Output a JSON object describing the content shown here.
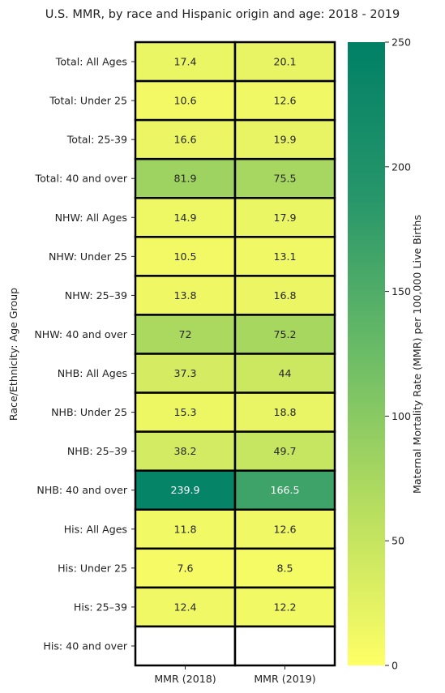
{
  "chart_data": {
    "type": "heatmap",
    "title": "U.S. MMR, by race and Hispanic origin and age: 2018 - 2019",
    "ylabel": "Race/Ethnicity: Age Group",
    "xlabel": "",
    "columns": [
      "MMR (2018)",
      "MMR (2019)"
    ],
    "rows": [
      "Total: All Ages",
      "Total: Under 25",
      "Total: 25-39",
      "Total: 40 and over",
      "NHW: All Ages",
      "NHW: Under 25",
      "NHW: 25–39",
      "NHW: 40 and over",
      "NHB: All Ages",
      "NHB: Under 25",
      "NHB: 25–39",
      "NHB: 40 and over",
      "His: All Ages",
      "His: Under 25",
      "His: 25–39",
      "His: 40 and over"
    ],
    "values": [
      [
        17.4,
        20.1
      ],
      [
        10.6,
        12.6
      ],
      [
        16.6,
        19.9
      ],
      [
        81.9,
        75.5
      ],
      [
        14.9,
        17.9
      ],
      [
        10.5,
        13.1
      ],
      [
        13.8,
        16.8
      ],
      [
        72,
        75.2
      ],
      [
        37.3,
        44
      ],
      [
        15.3,
        18.8
      ],
      [
        38.2,
        49.7
      ],
      [
        239.9,
        166.5
      ],
      [
        11.8,
        12.6
      ],
      [
        7.6,
        8.5
      ],
      [
        12.4,
        12.2
      ],
      [
        null,
        null
      ]
    ],
    "colorbar": {
      "label": "Maternal Mortality Rate (MMR) per 100,000 Live Births",
      "min": 0,
      "max": 250,
      "ticks": [
        0,
        50,
        100,
        150,
        200,
        250
      ],
      "colors": [
        "#ffff66",
        "#b7de5f",
        "#6bbc66",
        "#27966a",
        "#008066"
      ]
    },
    "colormap": "summer_r",
    "grid": false
  }
}
